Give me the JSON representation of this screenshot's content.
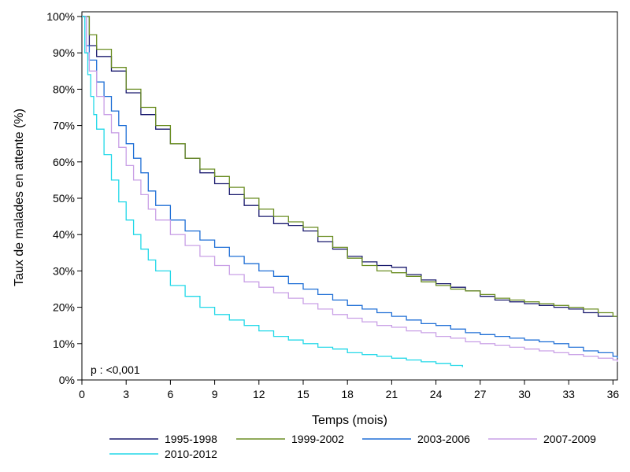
{
  "chart_data": {
    "type": "line",
    "step": true,
    "title": "",
    "xlabel": "Temps (mois)",
    "ylabel": "Taux de malades en attente (%)",
    "xlim": [
      0,
      36.3
    ],
    "ylim": [
      0,
      100
    ],
    "x_ticks": [
      0,
      3,
      6,
      9,
      12,
      15,
      18,
      21,
      24,
      27,
      30,
      33,
      36
    ],
    "y_ticks": [
      0,
      10,
      20,
      30,
      40,
      50,
      60,
      70,
      80,
      90,
      100
    ],
    "y_tick_labels": [
      "0%",
      "10%",
      "20%",
      "30%",
      "40%",
      "50%",
      "60%",
      "70%",
      "80%",
      "90%",
      "100%"
    ],
    "grid": false,
    "legend_position": "bottom",
    "annotation": "p : <0,001",
    "series": [
      {
        "name": "1995-1998",
        "color": "#1a1a6e",
        "x": [
          0,
          0.5,
          1,
          2,
          3,
          4,
          5,
          6,
          7,
          8,
          9,
          10,
          11,
          12,
          13,
          14,
          15,
          16,
          17,
          18,
          19,
          20,
          21,
          22,
          23,
          24,
          25,
          26,
          27,
          28,
          29,
          30,
          31,
          32,
          33,
          34,
          35,
          36,
          36.3
        ],
        "y": [
          100,
          92,
          89,
          85,
          79,
          73,
          69,
          65,
          61,
          57,
          54,
          51,
          48,
          45,
          43,
          42.5,
          41,
          38,
          36,
          34,
          32.5,
          31.5,
          31,
          29,
          27.5,
          26.5,
          25.5,
          24.5,
          23,
          22,
          21.5,
          21,
          20.5,
          20,
          19.5,
          18.5,
          17.5,
          17.5,
          17.5
        ]
      },
      {
        "name": "1999-2002",
        "color": "#6b8e23",
        "x": [
          0,
          0.5,
          1,
          2,
          3,
          4,
          5,
          6,
          7,
          8,
          9,
          10,
          11,
          12,
          13,
          14,
          15,
          16,
          17,
          18,
          19,
          20,
          21,
          22,
          23,
          24,
          25,
          26,
          27,
          28,
          29,
          30,
          31,
          32,
          33,
          34,
          35,
          36,
          36.3
        ],
        "y": [
          100,
          95,
          91,
          86,
          80,
          75,
          70,
          65,
          61,
          58,
          56,
          53,
          50,
          47,
          45,
          43.5,
          42,
          39.5,
          36.5,
          33.5,
          31.5,
          30,
          29.5,
          28.5,
          27,
          26,
          25,
          24.5,
          23.5,
          22.5,
          22,
          21.5,
          21,
          20.5,
          20,
          19.5,
          18.5,
          17.5,
          17.5
        ]
      },
      {
        "name": "2003-2006",
        "color": "#1f6fd6",
        "x": [
          0,
          0.3,
          0.5,
          1,
          1.5,
          2,
          2.5,
          3,
          3.5,
          4,
          4.5,
          5,
          6,
          7,
          8,
          9,
          10,
          11,
          12,
          13,
          14,
          15,
          16,
          17,
          18,
          19,
          20,
          21,
          22,
          23,
          24,
          25,
          26,
          27,
          28,
          29,
          30,
          31,
          32,
          33,
          34,
          35,
          36,
          36.3
        ],
        "y": [
          100,
          92,
          88,
          82,
          78,
          74,
          70,
          65,
          61,
          57,
          52,
          48,
          44,
          41,
          38.5,
          36.5,
          34,
          32,
          30,
          28.5,
          26.5,
          25,
          23.5,
          22,
          20.5,
          19.5,
          18.5,
          17.5,
          16.5,
          15.5,
          15,
          14,
          13,
          12.5,
          12,
          11.5,
          11,
          10.5,
          10,
          9,
          8,
          7.5,
          6.5,
          6
        ]
      },
      {
        "name": "2007-2009",
        "color": "#c9a0e6",
        "x": [
          0,
          0.3,
          0.5,
          1,
          1.5,
          2,
          2.5,
          3,
          3.5,
          4,
          4.5,
          5,
          6,
          7,
          8,
          9,
          10,
          11,
          12,
          13,
          14,
          15,
          16,
          17,
          18,
          19,
          20,
          21,
          22,
          23,
          24,
          25,
          26,
          27,
          28,
          29,
          30,
          31,
          32,
          33,
          34,
          35,
          36,
          36.3
        ],
        "y": [
          100,
          90,
          85,
          78,
          73,
          68,
          64,
          59,
          55,
          51,
          47,
          44,
          40,
          37,
          34,
          31.5,
          29,
          27,
          25.5,
          24,
          22.5,
          21,
          19.5,
          18,
          17,
          16,
          15,
          14.5,
          13.5,
          13,
          12,
          11.5,
          10.5,
          10,
          9.5,
          9,
          8.5,
          8,
          7.5,
          7,
          6.5,
          6,
          5.5,
          5
        ]
      },
      {
        "name": "2010-2012",
        "color": "#22d8e8",
        "x": [
          0,
          0.2,
          0.4,
          0.6,
          0.8,
          1,
          1.5,
          2,
          2.5,
          3,
          3.5,
          4,
          4.5,
          5,
          6,
          7,
          8,
          9,
          10,
          11,
          12,
          13,
          14,
          15,
          16,
          17,
          18,
          19,
          20,
          21,
          22,
          23,
          24,
          25,
          25.8
        ],
        "y": [
          100,
          90,
          84,
          78,
          73,
          69,
          62,
          55,
          49,
          44,
          40,
          36,
          33,
          30,
          26,
          23,
          20,
          18,
          16.5,
          15,
          13.5,
          12,
          11,
          10,
          9,
          8.5,
          7.5,
          7,
          6.5,
          6,
          5.5,
          5,
          4.5,
          4,
          3.5
        ]
      }
    ]
  }
}
